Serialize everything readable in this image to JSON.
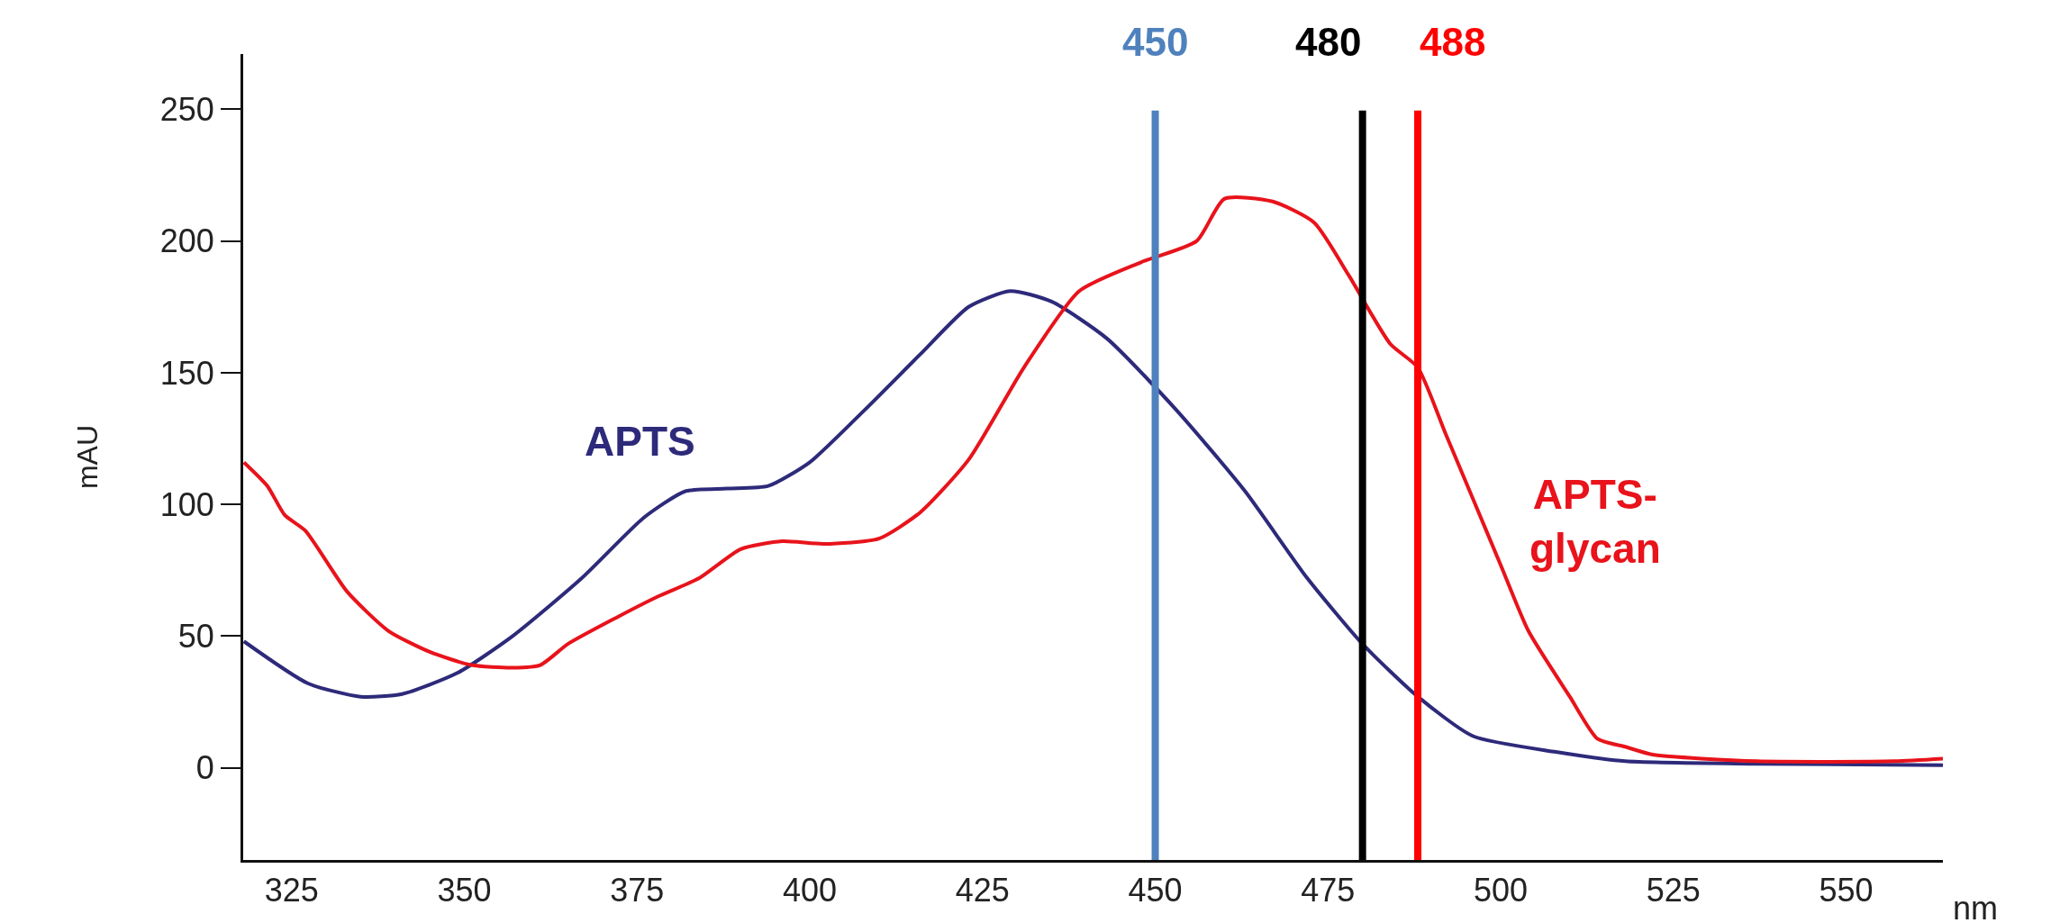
{
  "chart_data": {
    "type": "line",
    "xlabel": "nm",
    "ylabel": "mAU",
    "xlim": [
      318,
      564
    ],
    "ylim": [
      -35,
      271
    ],
    "xticks": [
      325,
      350,
      375,
      400,
      425,
      450,
      475,
      500,
      525,
      550
    ],
    "yticks": [
      0,
      50,
      100,
      150,
      200,
      250
    ],
    "grid": false,
    "legend": false,
    "marker": "none",
    "line_style": "solid",
    "series": [
      {
        "name": "APTS",
        "color": "#2e2a7a",
        "x": [
          318.1,
          327.4,
          335,
          341,
          349,
          357,
          367,
          376,
          382,
          388,
          394,
          400,
          408,
          416,
          423,
          429,
          435,
          443,
          453,
          463,
          472,
          480,
          488,
          496,
          508,
          518,
          537,
          564
        ],
        "values": [
          48,
          32,
          27,
          28,
          36,
          50,
          72,
          95,
          105,
          106,
          107,
          116,
          136,
          157,
          175,
          181,
          177,
          163,
          136,
          105,
          72,
          47,
          27,
          12,
          6,
          2.5,
          1.5,
          1
        ]
      },
      {
        "name": "APTS-glycan",
        "color": "#e8131b",
        "x": [
          318.1,
          321.5,
          324,
          327,
          333,
          339,
          345,
          351,
          357,
          361,
          365,
          372,
          378,
          384,
          390,
          396,
          402,
          410,
          416,
          423,
          431,
          439,
          448,
          456,
          460,
          467,
          473,
          478,
          484,
          488,
          492,
          496,
          500,
          504,
          510,
          514,
          518,
          522,
          537,
          557,
          564
        ],
        "values": [
          116,
          107,
          96,
          90,
          67,
          52,
          44,
          39,
          38,
          39,
          47,
          57,
          65,
          72,
          83,
          86,
          85,
          87,
          97,
          117,
          152,
          181,
          192,
          200,
          216,
          215,
          207,
          187,
          161,
          152,
          127,
          102,
          77,
          52,
          27,
          11,
          8,
          5,
          2.5,
          2.5,
          3.5
        ]
      }
    ],
    "ref_lines": [
      {
        "axis": "x",
        "value": 450,
        "label": "450",
        "color": "#4f81bd"
      },
      {
        "axis": "x",
        "value": 480,
        "label": "480",
        "color": "#000000"
      },
      {
        "axis": "x",
        "value": 488,
        "label": "488",
        "color": "#ff0000"
      }
    ]
  }
}
